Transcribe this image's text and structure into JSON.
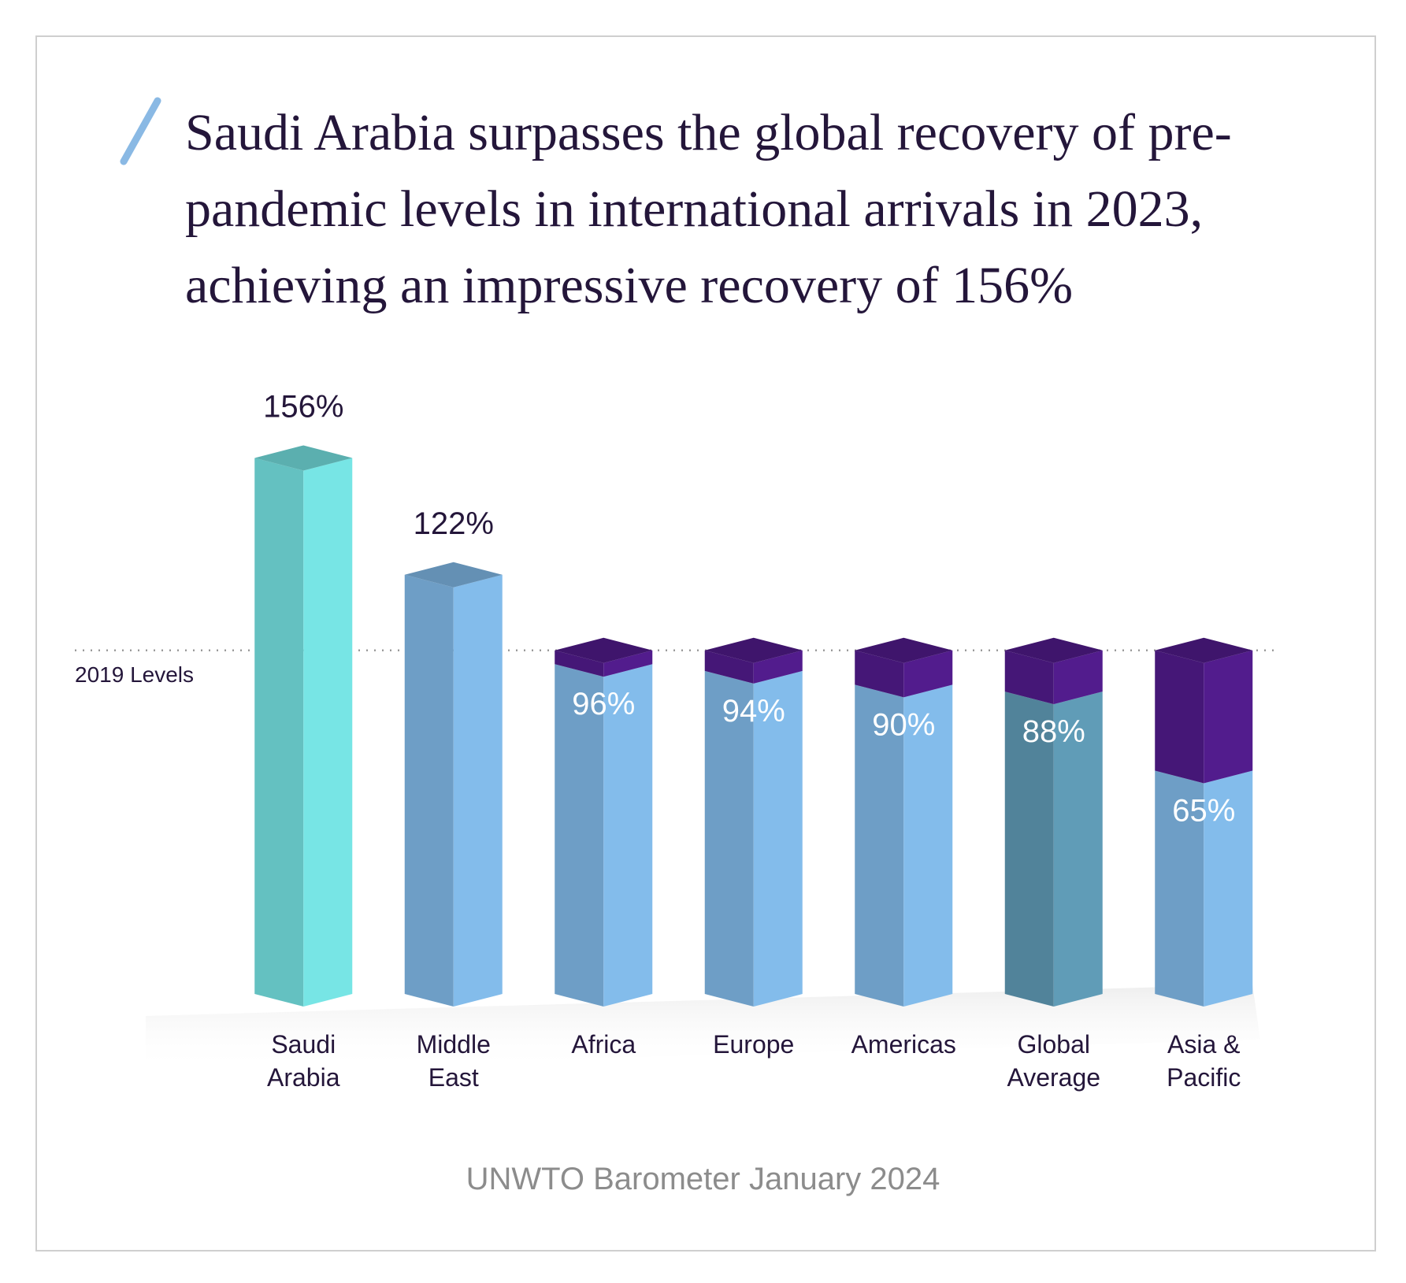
{
  "chart_data": {
    "type": "bar",
    "title": "Saudi Arabia surpasses the global recovery of pre-pandemic levels in international arrivals in 2023, achieving an impressive recovery of 156%",
    "categories": [
      "Saudi Arabia",
      "Middle East",
      "Africa",
      "Europe",
      "Americas",
      "Global Average",
      "Asia & Pacific"
    ],
    "values": [
      156,
      122,
      96,
      94,
      90,
      88,
      65
    ],
    "value_labels": [
      "156%",
      "122%",
      "96%",
      "94%",
      "90%",
      "88%",
      "65%"
    ],
    "colors": [
      "#6fd6d6",
      "#7ab0dc",
      "#7ab0dc",
      "#7ab0dc",
      "#7ab0dc",
      "#5a92ab",
      "#7ab0dc"
    ],
    "gap_color": "#4d1a84",
    "reference": {
      "value": 100,
      "label": "2019 Levels"
    },
    "ylim": [
      0,
      160
    ],
    "source": "UNWTO Barometer January 2024"
  }
}
